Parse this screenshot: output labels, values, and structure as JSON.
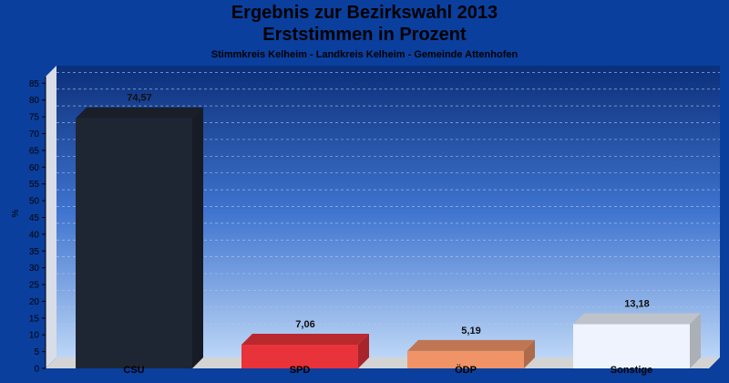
{
  "chart_data": {
    "type": "bar",
    "title": "Ergebnis zur Bezirkswahl 2013",
    "subtitle_main": "Erststimmen in Prozent",
    "subtitle": "Stimmkreis Kelheim - Landkreis Kelheim - Gemeinde Attenhofen",
    "ylabel": "%",
    "ylim": [
      0,
      87
    ],
    "yticks": [
      0,
      5,
      10,
      15,
      20,
      25,
      30,
      35,
      40,
      45,
      50,
      55,
      60,
      65,
      70,
      75,
      80,
      85
    ],
    "grid": true,
    "categories": [
      "CSU",
      "SPD",
      "ÖDP",
      "Sonstige"
    ],
    "values": [
      74.57,
      7.06,
      5.19,
      13.18
    ],
    "value_labels": [
      "74,57",
      "7,06",
      "5,19",
      "13,18"
    ],
    "colors": [
      "#1f2633",
      "#e8333a",
      "#f09468",
      "#eef3fd"
    ]
  }
}
